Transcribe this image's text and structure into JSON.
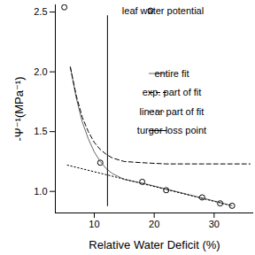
{
  "chart_data": {
    "type": "line",
    "x_label": "Relative Water Deficit (%)",
    "y_label": "-Ψ⁻¹(MPa⁻¹)",
    "xlim": [
      3.5,
      36.6
    ],
    "ylim": [
      0.82,
      2.56
    ],
    "xticks": [
      10,
      20,
      30
    ],
    "yticks": [
      {
        "value": 1,
        "label": "1.0"
      },
      {
        "value": 1.5,
        "label": "1.5"
      },
      {
        "value": 2,
        "label": "2.0"
      },
      {
        "value": 2.5,
        "label": "2.5"
      }
    ],
    "grid": false,
    "legend": "top-right",
    "series": [
      {
        "name": "leaf water potential",
        "type": "scatter",
        "marker": "circle",
        "color": "#000000",
        "x": [
          5,
          11,
          18,
          22,
          28,
          31,
          33
        ],
        "values": [
          2.54,
          1.24,
          1.08,
          1.01,
          0.95,
          0.9,
          0.88
        ]
      },
      {
        "name": "entire fit",
        "type": "line",
        "line_style": "solid",
        "color": "#666666",
        "x": [
          6,
          7,
          8,
          9,
          10,
          11,
          12,
          13,
          15,
          18,
          22,
          26,
          30,
          33
        ],
        "values": [
          2.04,
          1.78,
          1.58,
          1.44,
          1.33,
          1.25,
          1.19,
          1.15,
          1.1,
          1.07,
          1.02,
          0.97,
          0.92,
          0.88
        ]
      },
      {
        "name": "exp. part of fit",
        "type": "line",
        "line_style": "dashed",
        "color": "#000000",
        "x": [
          6,
          7,
          8,
          9,
          10,
          11,
          12,
          13,
          15,
          18,
          22,
          28,
          36
        ],
        "values": [
          2.04,
          1.8,
          1.62,
          1.5,
          1.41,
          1.35,
          1.31,
          1.28,
          1.25,
          1.24,
          1.23,
          1.23,
          1.23
        ]
      },
      {
        "name": "linear part of fit",
        "type": "line",
        "line_style": "dotted",
        "color": "#000000",
        "x": [
          5.5,
          33
        ],
        "values": [
          1.22,
          0.88
        ]
      },
      {
        "name": "turgor loss point",
        "type": "line",
        "line_style": "solid",
        "color": "#000000",
        "x": [
          12.2,
          12.2
        ],
        "values": [
          2.47,
          0.88
        ]
      }
    ]
  }
}
